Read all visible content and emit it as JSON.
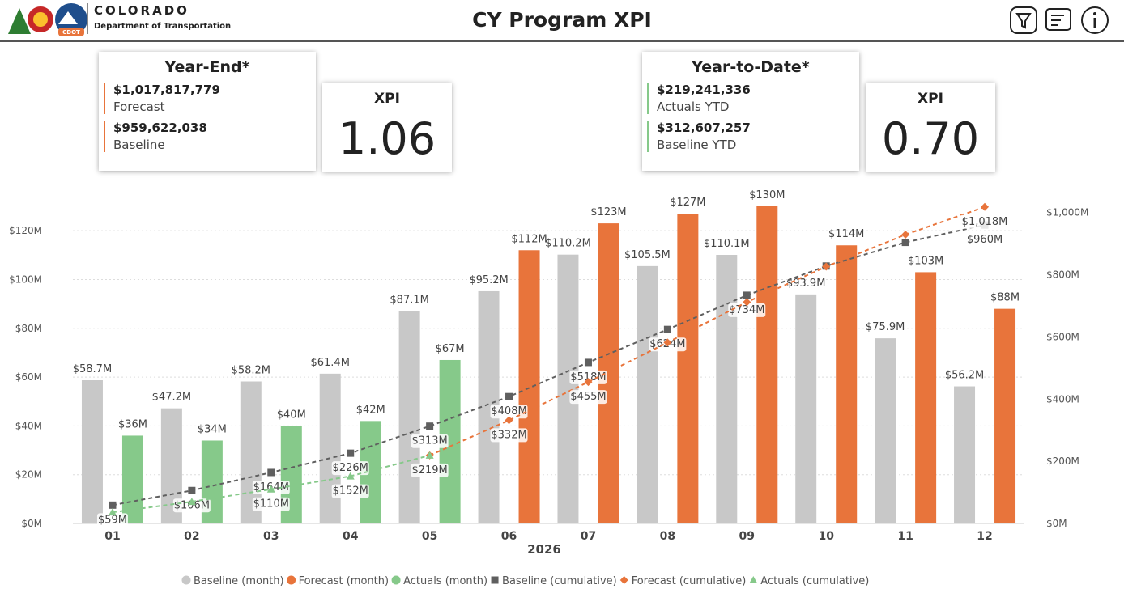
{
  "header": {
    "logo_text": "COLORADO",
    "logo_subtext": "Department of Transportation",
    "logo_badge": "CDOT",
    "title": "CY Program XPI"
  },
  "cards": [
    {
      "title": "Year-End*",
      "items": [
        {
          "value": "$1,017,817,779",
          "label": "Forecast"
        },
        {
          "value": "$959,622,038",
          "label": "Baseline"
        }
      ],
      "xpi_label": "XPI",
      "xpi": "1.06",
      "accent": "#e8743b"
    },
    {
      "title": "Year-to-Date*",
      "items": [
        {
          "value": "$219,241,336",
          "label": "Actuals YTD"
        },
        {
          "value": "$312,607,257",
          "label": "Baseline YTD"
        }
      ],
      "xpi_label": "XPI",
      "xpi": "0.70",
      "accent": "#86c98a"
    }
  ],
  "chart_data": {
    "type": "combo",
    "x_label": "2026",
    "categories": [
      "01",
      "02",
      "03",
      "04",
      "05",
      "06",
      "07",
      "08",
      "09",
      "10",
      "11",
      "12"
    ],
    "ylim": [
      0,
      130
    ],
    "yticks": [
      {
        "value": 0,
        "label": "$0M"
      },
      {
        "value": 20,
        "label": "$20M"
      },
      {
        "value": 40,
        "label": "$40M"
      },
      {
        "value": 60,
        "label": "$60M"
      },
      {
        "value": 80,
        "label": "$80M"
      },
      {
        "value": 100,
        "label": "$100M"
      },
      {
        "value": 120,
        "label": "$120M"
      }
    ],
    "y2lim": [
      0,
      1020
    ],
    "y2ticks": [
      {
        "value": 0,
        "label": "$0M"
      },
      {
        "value": 200,
        "label": "$200M"
      },
      {
        "value": 400,
        "label": "$400M"
      },
      {
        "value": 600,
        "label": "$600M"
      },
      {
        "value": 800,
        "label": "$800M"
      },
      {
        "value": 1000,
        "label": "$1,000M"
      }
    ],
    "grid": true,
    "legend": "bottom",
    "series": [
      {
        "name": "Baseline (month)",
        "kind": "bar",
        "slot": 0,
        "color": "#c8c8c8",
        "values": [
          58.7,
          47.2,
          58.2,
          61.4,
          87.1,
          95.2,
          110.2,
          105.5,
          110.1,
          93.9,
          75.9,
          56.2
        ],
        "value_labels": [
          "$58.7M",
          "$47.2M",
          "$58.2M",
          "$61.4M",
          "$87.1M",
          "$95.2M",
          "$110.2M",
          "$105.5M",
          "$110.1M",
          "$93.9M",
          "$75.9M",
          "$56.2M"
        ]
      },
      {
        "name": "Forecast (month)",
        "kind": "bar",
        "slot": 1,
        "color": "#e8743b",
        "values": [
          null,
          null,
          null,
          null,
          null,
          112,
          123,
          127,
          130,
          114,
          103,
          88
        ],
        "value_labels": [
          null,
          null,
          null,
          null,
          null,
          "$112M",
          "$123M",
          "$127M",
          "$130M",
          "$114M",
          "$103M",
          "$88M"
        ]
      },
      {
        "name": "Actuals (month)",
        "kind": "bar",
        "slot": 1,
        "color": "#86c98a",
        "values": [
          36,
          34,
          40,
          42,
          67,
          null,
          null,
          null,
          null,
          null,
          null,
          null
        ],
        "value_labels": [
          "$36M",
          "$34M",
          "$40M",
          "$42M",
          "$67M",
          null,
          null,
          null,
          null,
          null,
          null,
          null
        ]
      },
      {
        "name": "Baseline (cumulative)",
        "kind": "line",
        "axis": "y2",
        "marker": "square",
        "color": "#5f5f5f",
        "values": [
          59,
          106,
          164,
          226,
          313,
          408,
          518,
          624,
          734,
          828,
          904,
          960
        ],
        "value_labels": [
          "$59M",
          "$106M",
          "$164M",
          "$226M",
          "$313M",
          "$408M",
          "$518M",
          "$624M",
          "$734M",
          null,
          null,
          "$960M"
        ]
      },
      {
        "name": "Forecast (cumulative)",
        "kind": "line",
        "axis": "y2",
        "marker": "diamond",
        "color": "#e8743b",
        "values": [
          null,
          null,
          null,
          null,
          219,
          332,
          455,
          582,
          712,
          826,
          929,
          1018
        ],
        "value_labels": [
          null,
          null,
          null,
          null,
          null,
          "$332M",
          "$455M",
          null,
          null,
          null,
          null,
          "$1,018M"
        ]
      },
      {
        "name": "Actuals (cumulative)",
        "kind": "line",
        "axis": "y2",
        "marker": "triangle",
        "color": "#86c98a",
        "values": [
          36,
          70,
          110,
          152,
          219,
          null,
          null,
          null,
          null,
          null,
          null,
          null
        ],
        "value_labels": [
          null,
          null,
          "$110M",
          "$152M",
          "$219M",
          null,
          null,
          null,
          null,
          null,
          null,
          null
        ]
      }
    ]
  }
}
